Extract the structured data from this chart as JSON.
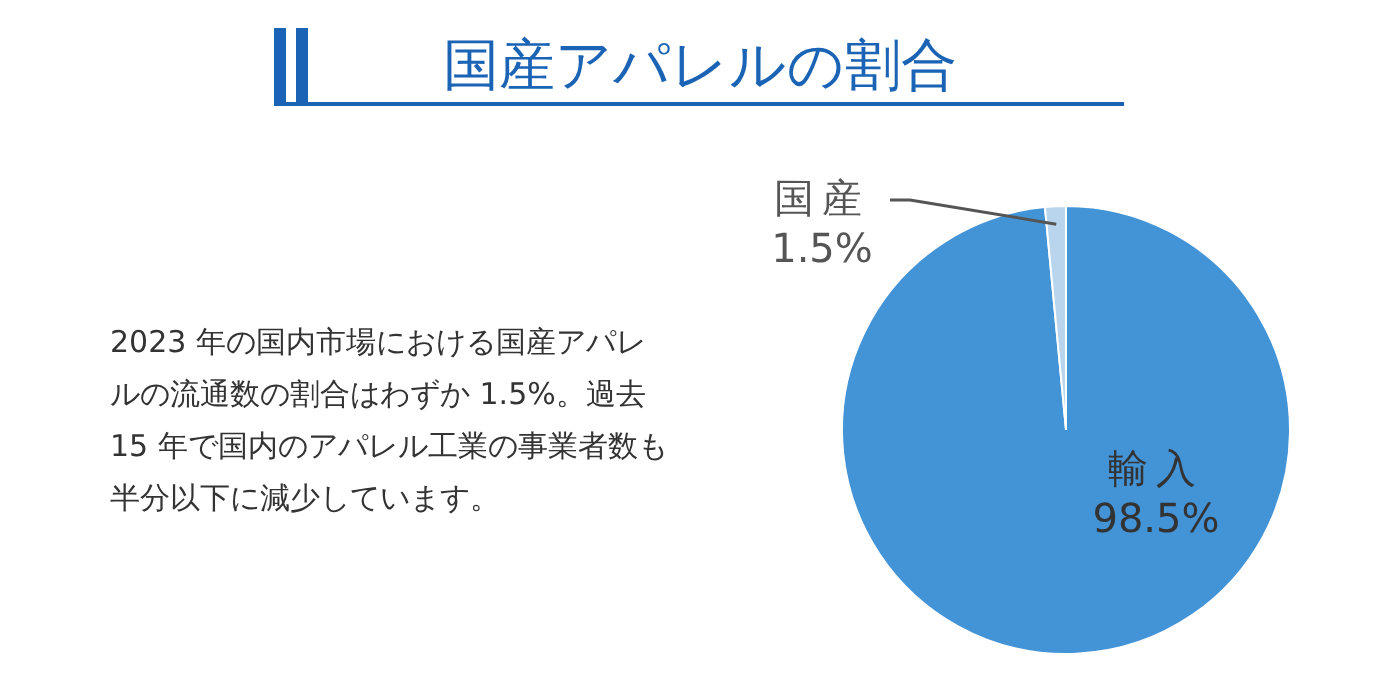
{
  "chart_data": {
    "type": "pie",
    "title": "国産アパレルの割合",
    "categories": [
      "輸入",
      "国産"
    ],
    "values": [
      98.5,
      1.5
    ],
    "value_labels": [
      "98.5%",
      "1.5%"
    ],
    "colors": [
      "#4393d7",
      "#b9d5ee"
    ],
    "annotations": [
      "2023 年の国内市場における国産アパレルの流通数の割合はわずか 1.5%。過去 15 年で国内のアパレル工業の事業者数も半分以下に減少しています。"
    ]
  }
}
